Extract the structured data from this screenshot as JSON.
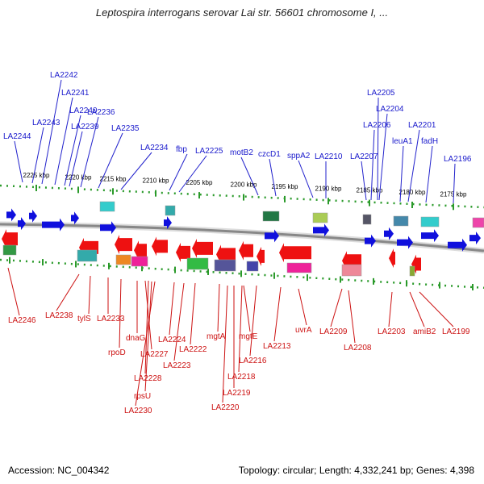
{
  "title": "Leptospira interrogans serovar Lai str. 56601 chromosome I, ...",
  "footer": {
    "accession": "Accession: NC_004342",
    "summary": "Topology: circular; Length: 4,332,241 bp; Genes: 4,398"
  },
  "colors": {
    "forward": "#1010dd",
    "reverse": "#ee1111",
    "backbone": "#888888",
    "ticks": "#2a9a2a"
  },
  "scale_ticks": [
    "2225 kbp",
    "2220 kbp",
    "2215 kbp",
    "2210 kbp",
    "2205 kbp",
    "2200 kbp",
    "2195 kbp",
    "2190 kbp",
    "2185 kbp",
    "2180 kbp",
    "2175 kbp"
  ],
  "genes_top": [
    "LA2242",
    "LA2241",
    "LA2240",
    "LA2243",
    "LA2239",
    "LA2236",
    "LA2235",
    "LA2244",
    "LA2234",
    "fbp",
    "LA2225",
    "motB2",
    "czcD1",
    "sppA2",
    "LA2210",
    "LA2205",
    "LA2204",
    "LA2206",
    "LA2201",
    "leuA1",
    "fadH",
    "LA2207",
    "LA2196"
  ],
  "genes_bottom": [
    "LA2246",
    "LA2238",
    "tylS",
    "LA2233",
    "rpoD",
    "dnaG",
    "LA2227",
    "LA2228",
    "rpsU",
    "LA2230",
    "LA2224",
    "LA2222",
    "LA2223",
    "mgtA",
    "mgtE",
    "LA2216",
    "LA2218",
    "LA2219",
    "LA2220",
    "LA2213",
    "uvrA",
    "LA2209",
    "LA2208",
    "LA2203",
    "amiB2",
    "LA2199"
  ]
}
